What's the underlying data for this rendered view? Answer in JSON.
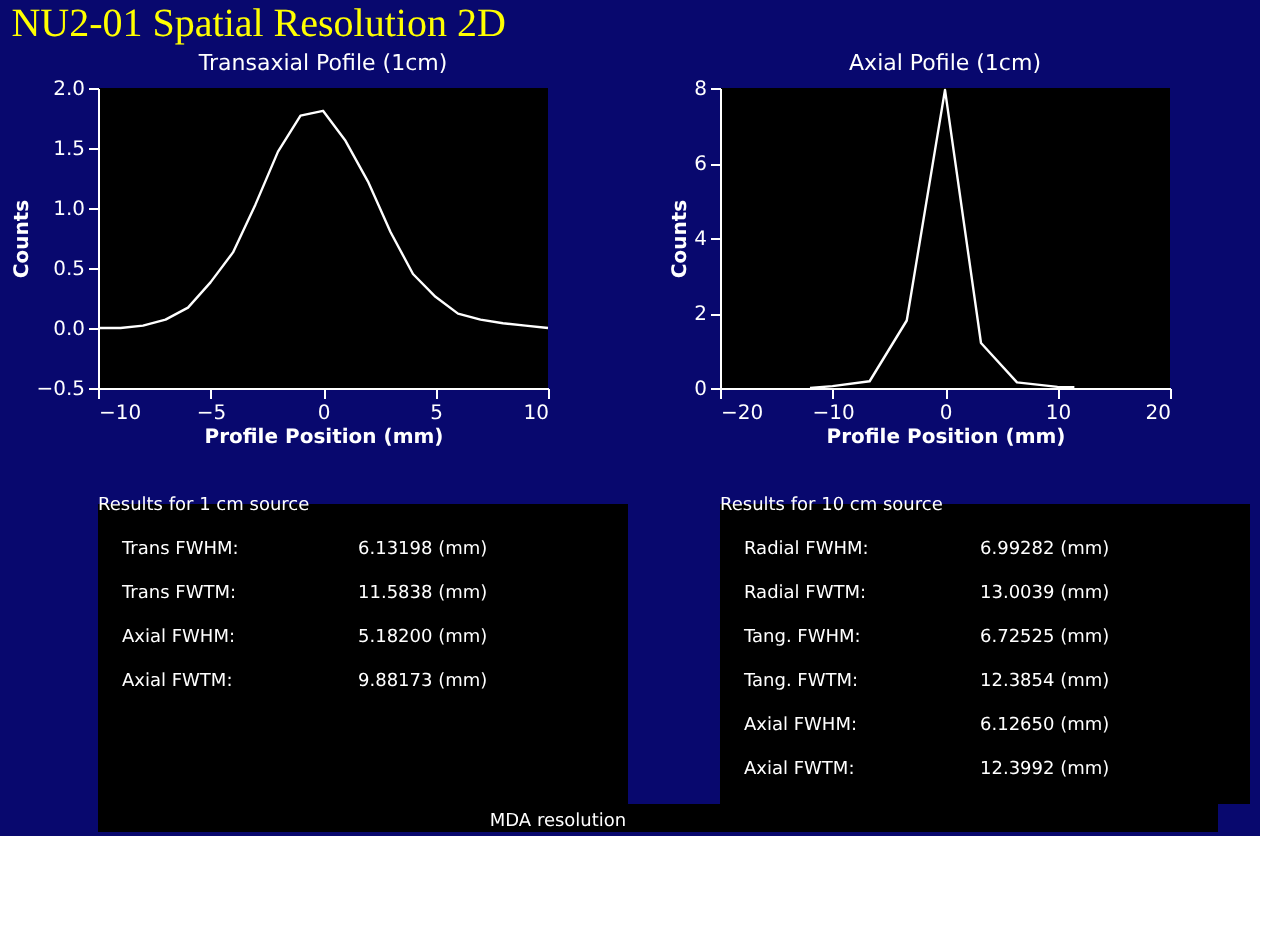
{
  "chart_data": [
    {
      "type": "line",
      "title": "Transaxial Pofile (1cm)",
      "xlabel": "Profile Position (mm)",
      "ylabel": "Counts",
      "color": "#ffffff",
      "grid": false,
      "x": [
        -10,
        -9,
        -8,
        -7,
        -6,
        -5,
        -4,
        -3,
        -2,
        -1,
        0,
        1,
        2,
        3,
        4,
        5,
        6,
        7,
        8,
        9,
        10
      ],
      "values": [
        0.0,
        0.0,
        0.02,
        0.07,
        0.17,
        0.38,
        0.63,
        1.03,
        1.47,
        1.77,
        1.81,
        1.56,
        1.22,
        0.8,
        0.45,
        0.26,
        0.12,
        0.07,
        0.04,
        0.02,
        0.0
      ],
      "xlim": [
        -10,
        10
      ],
      "xticks": [
        -10,
        -5,
        0,
        5,
        10
      ],
      "ylim": [
        -0.5,
        2.0
      ],
      "yticks": [
        {
          "value": -0.5,
          "label": "−0.5"
        },
        {
          "value": 0,
          "label": "0.0"
        },
        {
          "value": 0.5,
          "label": "0.5"
        },
        {
          "value": 1,
          "label": "1.0"
        },
        {
          "value": 1.5,
          "label": "1.5"
        },
        {
          "value": 2,
          "label": "2.0"
        }
      ],
      "annotations": [
        "Results for 1 cm source",
        "Trans FWHM:",
        "6.13198 (mm)",
        "Trans FWTM:",
        "11.5838 (mm)",
        "Axial FWHM:",
        "5.18200 (mm)",
        "Axial FWTM:",
        "9.88173 (mm)"
      ]
    },
    {
      "type": "line",
      "title": "Axial Pofile (1cm)",
      "xlabel": "Profile Position (mm)",
      "ylabel": "Counts",
      "color": "#ffffff",
      "grid": false,
      "x": [
        -12,
        -10,
        -6.7,
        -3.4,
        0,
        3.2,
        6.4,
        10,
        11.5
      ],
      "values": [
        0.0,
        0.05,
        0.18,
        1.8,
        7.95,
        1.2,
        0.15,
        0.03,
        0.02
      ],
      "xlim": [
        -20,
        20
      ],
      "xticks": [
        -20,
        -10,
        0,
        10,
        20
      ],
      "ylim": [
        0,
        8
      ],
      "yticks": [
        0,
        2,
        4,
        6,
        8
      ],
      "annotations": [
        "Results for 10 cm source",
        "Radial FWHM:",
        "6.99282 (mm)",
        "Radial FWTM:",
        "13.0039 (mm)",
        "Tang.  FWHM:",
        "6.72525 (mm)",
        "Tang.  FWTM:",
        "12.3854 (mm)",
        "Axial FWHM:",
        "6.12650 (mm)",
        "Axial FWTM:",
        "12.3992 (mm)"
      ]
    },
    {
      "type": "other",
      "title": "NU2-01 Spatial Resolution 2D",
      "annotations": [
        "MDA resolution"
      ]
    }
  ]
}
